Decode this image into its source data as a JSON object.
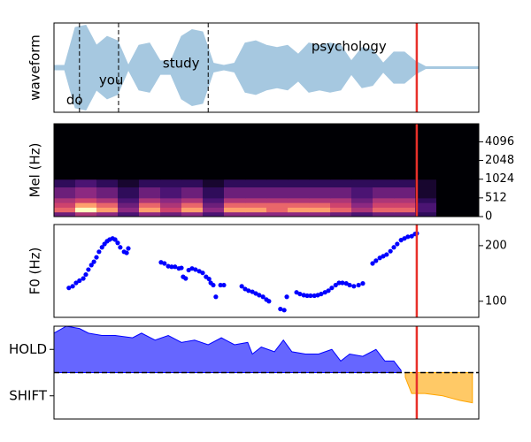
{
  "chart_data": [
    {
      "type": "waveform",
      "ylabel": "waveform",
      "xlim": [
        0,
        100
      ],
      "ylim": [
        -1,
        1
      ],
      "color": "#a6c8e0",
      "x": [
        0,
        2.5,
        5,
        7.5,
        10,
        12.5,
        15,
        17.5,
        20,
        22.5,
        25,
        27.5,
        30,
        32.5,
        35,
        37.5,
        40,
        42.5,
        45,
        47.5,
        50,
        52.5,
        55,
        57.5,
        60,
        62.5,
        65,
        67.5,
        70,
        72.5,
        75,
        77.5,
        80,
        82.5,
        85,
        87.5,
        90,
        92.5,
        95,
        97.5,
        100
      ],
      "values": [
        0.05,
        0.05,
        0.9,
        0.95,
        0.5,
        0.7,
        0.6,
        0.05,
        0.5,
        0.55,
        0.15,
        0.15,
        0.7,
        0.85,
        0.8,
        0.1,
        0.05,
        0.1,
        0.55,
        0.6,
        0.5,
        0.45,
        0.5,
        0.3,
        0.55,
        0.5,
        0.55,
        0.5,
        0.15,
        0.45,
        0.4,
        0.1,
        0.35,
        0.35,
        0.15,
        0.02,
        0.02,
        0.02,
        0.02,
        0.02,
        0.02
      ],
      "annotations": [
        {
          "text": "do",
          "x": 2.9,
          "y": -0.73
        },
        {
          "text": "you",
          "x": 10.6,
          "y": -0.29
        },
        {
          "text": "study",
          "x": 25.6,
          "y": 0.09
        },
        {
          "text": "psychology",
          "x": 60.6,
          "y": 0.47
        }
      ],
      "boundaries": [
        6.0,
        15.2,
        36.3
      ],
      "cursor": 85.4,
      "cursor_color": "#e8302a"
    },
    {
      "type": "heatmap",
      "ylabel": "Mel (Hz)",
      "xlim": [
        0,
        100
      ],
      "ylim": [
        0,
        8000
      ],
      "yscale": "symlog",
      "linthresh": 512,
      "base": 2,
      "yticks": [
        0,
        512,
        1024,
        2048,
        4096
      ],
      "colormap": "magma",
      "x_edges": [
        0,
        5,
        10,
        15,
        20,
        25,
        30,
        35,
        40,
        45,
        50,
        55,
        60,
        65,
        70,
        75,
        80,
        85,
        90,
        95,
        100
      ],
      "y_edges": [
        0,
        128,
        256,
        384,
        512,
        768,
        1024,
        8000
      ],
      "z": [
        [
          0.4,
          0.6,
          0.5,
          0.3,
          0.5,
          0.4,
          0.5,
          0.3,
          0.5,
          0.5,
          0.5,
          0.5,
          0.5,
          0.4,
          0.3,
          0.4,
          0.4,
          0.2,
          0,
          0
        ],
        [
          0.8,
          1,
          0.9,
          0.5,
          0.9,
          0.7,
          0.9,
          0.5,
          0.9,
          0.9,
          0.8,
          0.9,
          0.9,
          0.8,
          0.6,
          0.8,
          0.8,
          0.3,
          0,
          0
        ],
        [
          0.7,
          0.9,
          0.8,
          0.4,
          0.8,
          0.6,
          0.8,
          0.4,
          0.8,
          0.8,
          0.8,
          0.8,
          0.8,
          0.7,
          0.5,
          0.7,
          0.7,
          0.3,
          0,
          0
        ],
        [
          0.6,
          0.7,
          0.6,
          0.3,
          0.6,
          0.5,
          0.6,
          0.3,
          0.6,
          0.6,
          0.6,
          0.6,
          0.6,
          0.6,
          0.4,
          0.6,
          0.6,
          0.2,
          0,
          0
        ],
        [
          0.4,
          0.5,
          0.4,
          0.2,
          0.4,
          0.3,
          0.4,
          0.2,
          0.4,
          0.4,
          0.4,
          0.4,
          0.4,
          0.4,
          0.3,
          0.4,
          0.4,
          0.1,
          0,
          0
        ],
        [
          0.2,
          0.3,
          0.2,
          0.1,
          0.2,
          0.2,
          0.2,
          0.1,
          0.2,
          0.2,
          0.2,
          0.2,
          0.2,
          0.2,
          0.2,
          0.2,
          0.2,
          0.1,
          0,
          0
        ],
        [
          0,
          0,
          0,
          0,
          0,
          0,
          0,
          0,
          0,
          0,
          0,
          0,
          0,
          0,
          0,
          0,
          0,
          0,
          0,
          0
        ]
      ],
      "cursor": 85.4,
      "cursor_color": "#e8302a"
    },
    {
      "type": "scatter",
      "ylabel": "F0 (Hz)",
      "xlim": [
        0,
        100
      ],
      "ylim": [
        71,
        238
      ],
      "yticks": [
        100,
        200
      ],
      "color": "#0000ff",
      "x": [
        3.5,
        4.4,
        5.2,
        6.0,
        6.9,
        7.5,
        8.1,
        8.8,
        9.4,
        10.0,
        10.6,
        11.3,
        11.9,
        12.5,
        13.1,
        13.8,
        14.4,
        15.0,
        15.6,
        16.5,
        17.1,
        17.5,
        25.2,
        26.0,
        26.9,
        27.7,
        28.5,
        29.4,
        30.0,
        30.4,
        31.0,
        31.7,
        32.5,
        33.3,
        34.2,
        35.0,
        35.8,
        36.5,
        36.9,
        37.5,
        38.1,
        39.2,
        40.0,
        44.2,
        45.0,
        45.8,
        46.7,
        47.5,
        48.3,
        49.2,
        50.0,
        50.6,
        53.3,
        54.2,
        54.8,
        57.1,
        57.9,
        58.8,
        59.6,
        60.4,
        61.3,
        62.1,
        62.9,
        63.8,
        64.6,
        65.4,
        66.3,
        67.1,
        67.9,
        68.8,
        69.6,
        70.6,
        71.7,
        72.7,
        75.0,
        75.8,
        76.7,
        77.5,
        78.3,
        79.2,
        80.0,
        80.8,
        81.7,
        82.5,
        83.3,
        84.2,
        85.0,
        85.4
      ],
      "values": [
        124,
        127,
        133,
        137,
        141,
        148,
        157,
        165,
        171,
        179,
        189,
        197,
        203,
        208,
        211,
        213,
        211,
        205,
        197,
        189,
        187,
        195,
        170,
        168,
        163,
        162,
        162,
        159,
        160,
        144,
        141,
        156,
        159,
        157,
        154,
        151,
        144,
        140,
        133,
        129,
        108,
        129,
        129,
        127,
        122,
        119,
        117,
        114,
        111,
        108,
        103,
        100,
        86,
        84,
        108,
        116,
        113,
        111,
        110,
        110,
        110,
        111,
        113,
        116,
        119,
        124,
        129,
        133,
        133,
        132,
        129,
        127,
        129,
        132,
        168,
        173,
        178,
        181,
        184,
        190,
        197,
        203,
        210,
        213,
        216,
        217,
        221,
        222
      ],
      "cursor": 85.4,
      "cursor_color": "#e8302a"
    },
    {
      "type": "area",
      "xlim": [
        0,
        100
      ],
      "ylim": [
        -2,
        2
      ],
      "yticks": [
        {
          "value": 1,
          "label": "HOLD"
        },
        {
          "value": -1,
          "label": "SHIFT"
        }
      ],
      "reference_line": 0,
      "series": [
        {
          "color": "#0000ff",
          "x": [
            0,
            2.9,
            6.0,
            8.1,
            11.3,
            14.4,
            18.5,
            20.6,
            23.8,
            26.9,
            30.0,
            33.1,
            36.3,
            39.4,
            42.5,
            45.6,
            46.7,
            48.8,
            51.9,
            54.0,
            56.0,
            59.2,
            62.3,
            65.4,
            67.5,
            69.6,
            72.7,
            75.8,
            77.9,
            80.0,
            81.7
          ],
          "values": [
            1.7,
            2.0,
            1.9,
            1.7,
            1.6,
            1.6,
            1.5,
            1.7,
            1.4,
            1.6,
            1.3,
            1.4,
            1.2,
            1.5,
            1.2,
            1.3,
            0.8,
            1.1,
            0.9,
            1.4,
            0.9,
            0.8,
            0.8,
            1.0,
            0.5,
            0.8,
            0.7,
            1.0,
            0.5,
            0.5,
            0.1
          ]
        },
        {
          "color": "#ffa500",
          "x": [
            82.7,
            84.2,
            87.3,
            91.5,
            95.6,
            98.5
          ],
          "values": [
            -0.2,
            -0.9,
            -0.9,
            -1.0,
            -1.2,
            -1.3
          ]
        }
      ],
      "cursor": 85.4,
      "cursor_color": "#e8302a"
    }
  ]
}
